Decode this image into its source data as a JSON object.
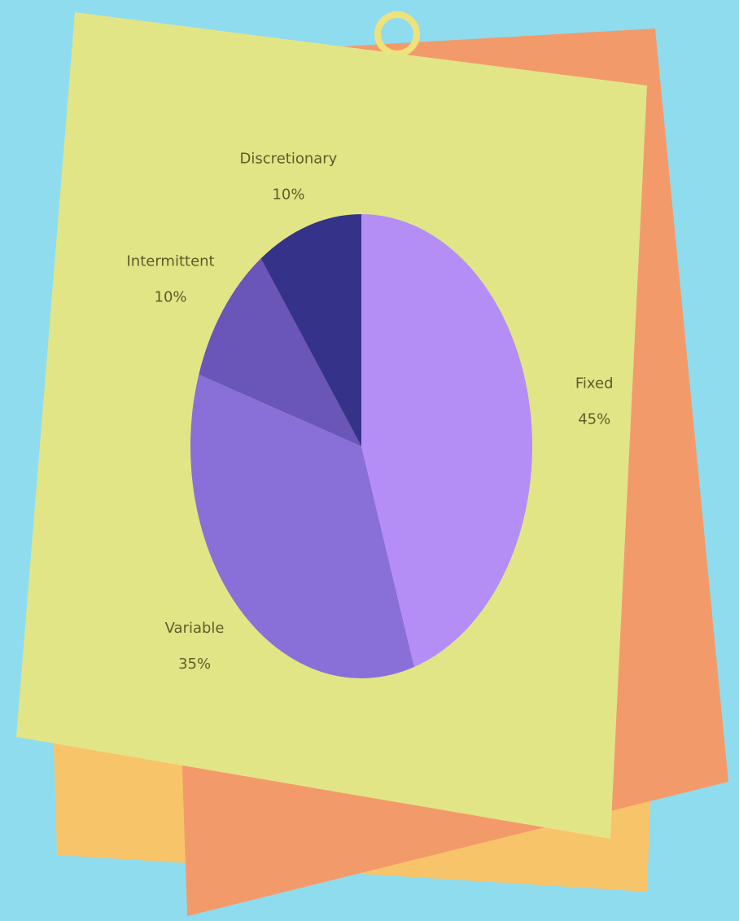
{
  "chart_data": {
    "type": "pie",
    "categories": [
      "Fixed",
      "Variable",
      "Intermittent",
      "Discretionary"
    ],
    "values": [
      45,
      35,
      10,
      10
    ],
    "value_labels": [
      "45%",
      "35%",
      "10%",
      "10%"
    ],
    "colors": [
      "#b48ef5",
      "#8870d8",
      "#6a55b8",
      "#35328a"
    ]
  }
}
